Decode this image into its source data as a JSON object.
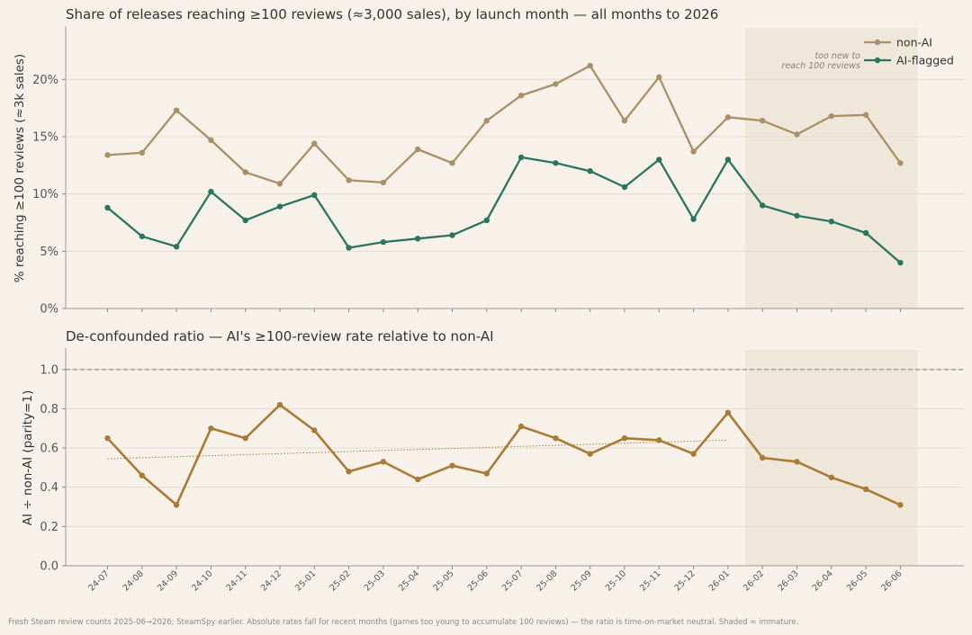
{
  "chart_data": [
    {
      "type": "line",
      "title": "Share of releases reaching ≥100 reviews (≈3,000 sales), by launch month — all months to 2026",
      "ylabel": "% reaching ≥100 reviews (≈3k sales)",
      "xlabel": "",
      "ylim": [
        0,
        24.5
      ],
      "yticks": [
        "0%",
        "5%",
        "10%",
        "15%",
        "20%"
      ],
      "ytick_values": [
        0,
        5,
        10,
        15,
        20
      ],
      "categories": [
        "24-07",
        "24-08",
        "24-09",
        "24-10",
        "24-11",
        "24-12",
        "25-01",
        "25-02",
        "25-03",
        "25-04",
        "25-05",
        "25-06",
        "25-07",
        "25-08",
        "25-09",
        "25-10",
        "25-11",
        "25-12",
        "26-01",
        "26-02",
        "26-03",
        "26-04",
        "26-05",
        "26-06"
      ],
      "series": [
        {
          "name": "non-AI",
          "color": "#a89068",
          "values": [
            13.4,
            13.6,
            17.3,
            14.7,
            11.9,
            10.9,
            14.4,
            11.2,
            11.0,
            13.9,
            12.7,
            16.4,
            18.6,
            19.6,
            21.2,
            16.4,
            20.2,
            13.7,
            16.7,
            16.4,
            15.2,
            16.8,
            16.9,
            12.7
          ]
        },
        {
          "name": "AI-flagged",
          "color": "#2a7560",
          "values": [
            8.8,
            6.3,
            5.4,
            10.2,
            7.7,
            8.9,
            9.9,
            5.3,
            5.8,
            6.1,
            6.4,
            7.7,
            13.2,
            12.7,
            12.0,
            10.6,
            13.0,
            7.8,
            13.0,
            9.0,
            8.1,
            7.6,
            6.6,
            4.0
          ]
        }
      ],
      "shaded_region": {
        "from": "26-02",
        "to": "26-06",
        "color": "#ede5d8"
      },
      "annotation": [
        "too new to",
        "reach 100 reviews"
      ],
      "legend": "top-right",
      "grid": "horizontal"
    },
    {
      "type": "line",
      "title": "De-confounded ratio — AI's ≥100-review rate relative to non-AI",
      "ylabel": "AI ÷ non-AI (parity=1)",
      "xlabel": "",
      "ylim": [
        0,
        1.1
      ],
      "yticks": [
        "0.0",
        "0.2",
        "0.4",
        "0.6",
        "0.8",
        "1.0"
      ],
      "ytick_values": [
        0,
        0.2,
        0.4,
        0.6,
        0.8,
        1.0
      ],
      "categories": [
        "24-07",
        "24-08",
        "24-09",
        "24-10",
        "24-11",
        "24-12",
        "25-01",
        "25-02",
        "25-03",
        "25-04",
        "25-05",
        "25-06",
        "25-07",
        "25-08",
        "25-09",
        "25-10",
        "25-11",
        "25-12",
        "26-01",
        "26-02",
        "26-03",
        "26-04",
        "26-05",
        "26-06"
      ],
      "series": [
        {
          "color": "#a87c35",
          "values": [
            0.65,
            0.46,
            0.31,
            0.7,
            0.65,
            0.82,
            0.69,
            0.48,
            0.53,
            0.44,
            0.51,
            0.47,
            0.71,
            0.65,
            0.57,
            0.65,
            0.64,
            0.57,
            0.78,
            0.55,
            0.53,
            0.45,
            0.39,
            0.31
          ]
        }
      ],
      "trend": {
        "from": "24-07",
        "to": "26-01",
        "y_start": 0.545,
        "y_end": 0.64,
        "style": "dotted",
        "color": "#a87c35"
      },
      "reference_line": {
        "y": 1.0,
        "style": "dashed",
        "color": "#888888"
      },
      "shaded_region": {
        "from": "26-02",
        "to": "26-06",
        "color": "#ede5d8"
      },
      "grid": "horizontal"
    }
  ],
  "footer": "Fresh Steam review counts 2025-06→2026; SteamSpy earlier. Absolute rates fall for recent months (games too young to accumulate 100 reviews) — the ratio is time-on-market neutral. Shaded = immature."
}
